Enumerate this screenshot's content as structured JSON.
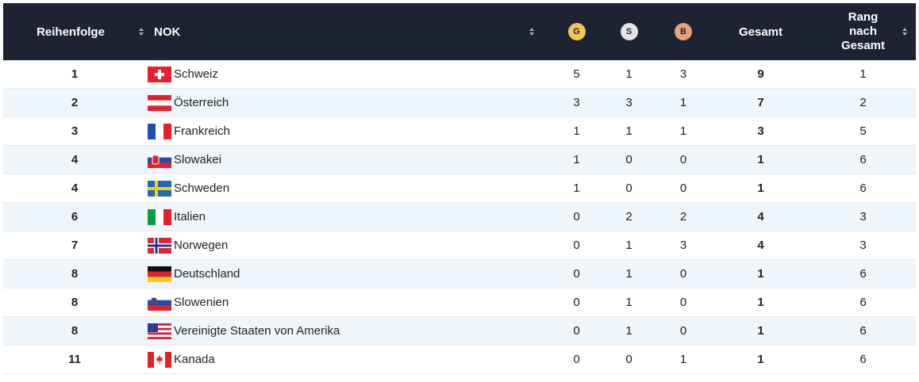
{
  "table": {
    "header": [
      "Reihenfolge",
      "NOK",
      "G",
      "S",
      "B",
      "Gesamt",
      "Rang nach Gesamt"
    ],
    "rows": [
      [
        1,
        "Schweiz",
        5,
        1,
        3,
        9,
        1
      ],
      [
        2,
        "Österreich",
        3,
        3,
        1,
        7,
        2
      ],
      [
        3,
        "Frankreich",
        1,
        1,
        1,
        3,
        5
      ],
      [
        4,
        "Slowakei",
        1,
        0,
        0,
        1,
        6
      ],
      [
        4,
        "Schweden",
        1,
        0,
        0,
        1,
        6
      ],
      [
        6,
        "Italien",
        0,
        2,
        2,
        4,
        3
      ],
      [
        7,
        "Norwegen",
        0,
        1,
        3,
        4,
        3
      ],
      [
        8,
        "Deutschland",
        0,
        1,
        0,
        1,
        6
      ],
      [
        8,
        "Slowenien",
        0,
        1,
        0,
        1,
        6
      ],
      [
        8,
        "Vereinigte Staaten von Amerika",
        0,
        1,
        0,
        1,
        6
      ],
      [
        11,
        "Kanada",
        0,
        0,
        1,
        1,
        6
      ]
    ]
  }
}
